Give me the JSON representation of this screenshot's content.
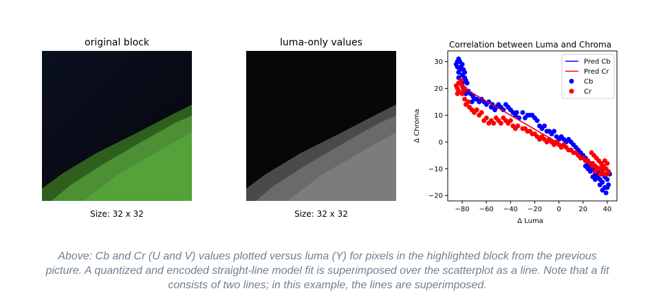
{
  "panels": {
    "original": {
      "title": "original block",
      "size": "Size: 32 x 32"
    },
    "luma": {
      "title": "luma-only values",
      "size": "Size: 32 x 32"
    }
  },
  "caption": "Above: Cb and Cr (U and V) values plotted versus luma (Y) for pixels in the highlighted block from the previous picture. A quantized and encoded straight-line model fit is superimposed over the scatterplot as a line. Note that a fit consists of two lines; in this example, the lines are superimposed.",
  "chart_data": {
    "type": "scatter",
    "title": "Correlation between Luma and Chroma",
    "xlabel": "Δ Luma",
    "ylabel": "Δ Chroma",
    "xlim": [
      -92,
      48
    ],
    "ylim": [
      -22,
      34
    ],
    "xticks": [
      -80,
      -60,
      -40,
      -20,
      0,
      20,
      40
    ],
    "yticks": [
      -20,
      -10,
      0,
      10,
      20,
      30
    ],
    "legend_position": "top-right",
    "colors": {
      "cb": "#0000ff",
      "cr": "#ff0000"
    },
    "lines": [
      {
        "name": "Pred Cb",
        "color": "#0000ff",
        "x": [
          -82,
          40
        ],
        "y": [
          21,
          -11
        ]
      },
      {
        "name": "Pred Cr",
        "color": "#ff0000",
        "x": [
          -82,
          40
        ],
        "y": [
          21,
          -11
        ]
      }
    ],
    "series": [
      {
        "name": "Cb",
        "color": "#0000ff",
        "points": [
          [
            -85,
            29
          ],
          [
            -84,
            30
          ],
          [
            -83,
            31
          ],
          [
            -82,
            30
          ],
          [
            -81,
            28
          ],
          [
            -80,
            29
          ],
          [
            -79,
            27
          ],
          [
            -84,
            28
          ],
          [
            -83,
            26
          ],
          [
            -82,
            27
          ],
          [
            -80,
            25
          ],
          [
            -78,
            24
          ],
          [
            -77,
            23
          ],
          [
            -76,
            22
          ],
          [
            -78,
            26
          ],
          [
            -80,
            22
          ],
          [
            -83,
            24
          ],
          [
            -79,
            20
          ],
          [
            -77,
            18
          ],
          [
            -75,
            19
          ],
          [
            -73,
            18
          ],
          [
            -71,
            17
          ],
          [
            -70,
            16
          ],
          [
            -72,
            15
          ],
          [
            -68,
            16
          ],
          [
            -66,
            15
          ],
          [
            -64,
            16
          ],
          [
            -62,
            15
          ],
          [
            -60,
            14
          ],
          [
            -58,
            15
          ],
          [
            -56,
            13
          ],
          [
            -55,
            14
          ],
          [
            -53,
            12
          ],
          [
            -52,
            13
          ],
          [
            -50,
            14
          ],
          [
            -48,
            13
          ],
          [
            -46,
            12
          ],
          [
            -44,
            14
          ],
          [
            -42,
            13
          ],
          [
            -40,
            12
          ],
          [
            -38,
            11
          ],
          [
            -36,
            10
          ],
          [
            -35,
            11
          ],
          [
            -33,
            9
          ],
          [
            -30,
            11
          ],
          [
            -28,
            9
          ],
          [
            -26,
            10
          ],
          [
            -24,
            10
          ],
          [
            -22,
            10
          ],
          [
            -20,
            9
          ],
          [
            -18,
            8
          ],
          [
            -16,
            6
          ],
          [
            -14,
            5
          ],
          [
            -12,
            6
          ],
          [
            -10,
            4
          ],
          [
            -8,
            4
          ],
          [
            -6,
            3
          ],
          [
            -4,
            4
          ],
          [
            -2,
            2
          ],
          [
            0,
            1
          ],
          [
            2,
            2
          ],
          [
            4,
            1
          ],
          [
            6,
            0
          ],
          [
            8,
            1
          ],
          [
            10,
            0
          ],
          [
            12,
            -1
          ],
          [
            14,
            -2
          ],
          [
            16,
            -3
          ],
          [
            18,
            -4
          ],
          [
            20,
            -5
          ],
          [
            22,
            -6
          ],
          [
            24,
            -8
          ],
          [
            26,
            -9
          ],
          [
            28,
            -10
          ],
          [
            30,
            -12
          ],
          [
            32,
            -13
          ],
          [
            34,
            -14
          ],
          [
            36,
            -15
          ],
          [
            38,
            -17
          ],
          [
            40,
            -17
          ],
          [
            41,
            -16
          ],
          [
            39,
            -19
          ],
          [
            36,
            -18
          ],
          [
            34,
            -16
          ],
          [
            30,
            -14
          ],
          [
            28,
            -13
          ],
          [
            35,
            -12
          ],
          [
            38,
            -13
          ],
          [
            40,
            -14
          ],
          [
            42,
            -12
          ],
          [
            26,
            -11
          ],
          [
            24,
            -10
          ],
          [
            22,
            -9
          ],
          [
            32,
            -11
          ],
          [
            37,
            -10
          ]
        ]
      },
      {
        "name": "Cr",
        "color": "#ff0000",
        "points": [
          [
            -85,
            21
          ],
          [
            -84,
            20
          ],
          [
            -83,
            19
          ],
          [
            -82,
            22
          ],
          [
            -81,
            23
          ],
          [
            -80,
            21
          ],
          [
            -79,
            19
          ],
          [
            -78,
            20
          ],
          [
            -84,
            18
          ],
          [
            -83,
            22
          ],
          [
            -80,
            18
          ],
          [
            -78,
            16
          ],
          [
            -77,
            14
          ],
          [
            -75,
            15
          ],
          [
            -74,
            13
          ],
          [
            -72,
            12
          ],
          [
            -70,
            11
          ],
          [
            -68,
            12
          ],
          [
            -66,
            10
          ],
          [
            -64,
            11
          ],
          [
            -62,
            8
          ],
          [
            -60,
            9
          ],
          [
            -58,
            7
          ],
          [
            -56,
            8
          ],
          [
            -54,
            7
          ],
          [
            -52,
            9
          ],
          [
            -50,
            8
          ],
          [
            -48,
            7
          ],
          [
            -46,
            9
          ],
          [
            -44,
            8
          ],
          [
            -42,
            7
          ],
          [
            -40,
            8
          ],
          [
            -38,
            6
          ],
          [
            -36,
            5
          ],
          [
            -34,
            6
          ],
          [
            -30,
            5
          ],
          [
            -28,
            5
          ],
          [
            -26,
            4
          ],
          [
            -24,
            4
          ],
          [
            -22,
            3
          ],
          [
            -20,
            3
          ],
          [
            -18,
            2
          ],
          [
            -16,
            1
          ],
          [
            -14,
            2
          ],
          [
            -12,
            1
          ],
          [
            -10,
            0
          ],
          [
            -8,
            1
          ],
          [
            -6,
            0
          ],
          [
            -4,
            -1
          ],
          [
            -2,
            0
          ],
          [
            0,
            -1
          ],
          [
            2,
            -2
          ],
          [
            4,
            -1
          ],
          [
            6,
            -2
          ],
          [
            8,
            -3
          ],
          [
            10,
            -3
          ],
          [
            12,
            -4
          ],
          [
            14,
            -4
          ],
          [
            16,
            -5
          ],
          [
            18,
            -6
          ],
          [
            20,
            -6
          ],
          [
            22,
            -7
          ],
          [
            24,
            -7
          ],
          [
            26,
            -8
          ],
          [
            28,
            -9
          ],
          [
            30,
            -9
          ],
          [
            32,
            -10
          ],
          [
            34,
            -10
          ],
          [
            36,
            -11
          ],
          [
            38,
            -12
          ],
          [
            40,
            -12
          ],
          [
            41,
            -11
          ],
          [
            39,
            -10
          ],
          [
            37,
            -9
          ],
          [
            35,
            -8
          ],
          [
            33,
            -7
          ],
          [
            31,
            -6
          ],
          [
            29,
            -5
          ],
          [
            27,
            -4
          ],
          [
            40,
            -8
          ],
          [
            38,
            -7
          ],
          [
            36,
            -9
          ],
          [
            34,
            -12
          ],
          [
            30,
            -11
          ],
          [
            28,
            -8
          ]
        ]
      }
    ]
  }
}
